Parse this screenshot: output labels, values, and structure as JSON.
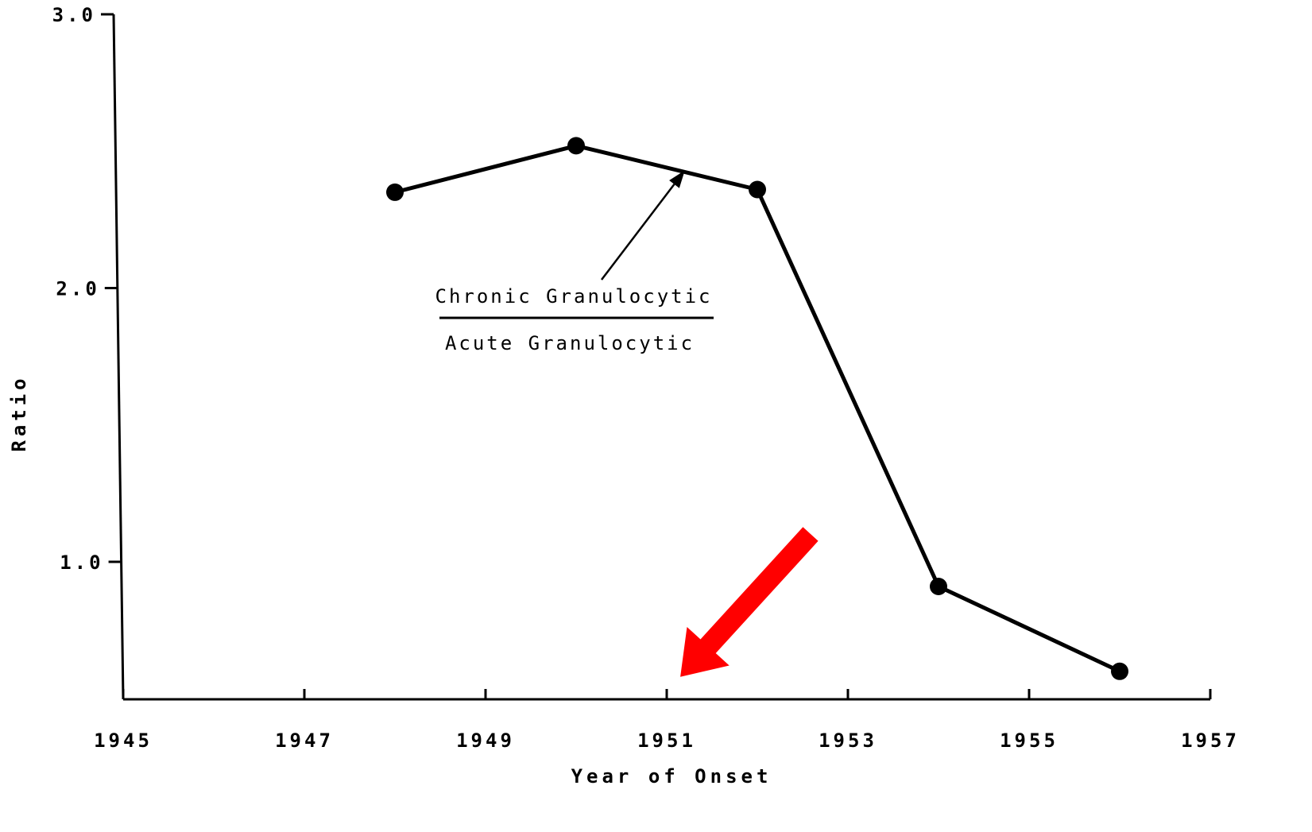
{
  "chart_data": {
    "type": "line",
    "title": "",
    "xlabel": "Year of Onset",
    "ylabel": "Ratio",
    "xlim": [
      1945,
      1957
    ],
    "ylim": [
      0.5,
      3.0
    ],
    "x_ticks": [
      "1945",
      "1947",
      "1949",
      "1951",
      "1953",
      "1955",
      "1957"
    ],
    "x_tick_values": [
      1945,
      1947,
      1949,
      1951,
      1953,
      1955,
      1957
    ],
    "y_ticks": [
      "1.0",
      "2.0",
      "3.0"
    ],
    "y_tick_values": [
      1.0,
      2.0,
      3.0
    ],
    "grid": false,
    "series": [
      {
        "x": [
          1948,
          1950,
          1952,
          1954,
          1956
        ],
        "values": [
          2.35,
          2.52,
          2.36,
          0.91,
          0.6
        ]
      }
    ],
    "annotation": {
      "numerator": "Chronic Granulocytic",
      "denominator": "Acute Granulocytic",
      "points_to": {
        "x": 1951.2,
        "y": 2.43
      }
    },
    "highlight_arrow": {
      "color": "#ff0000",
      "points_to": {
        "x": 1951.15,
        "y": 0.58
      }
    }
  }
}
